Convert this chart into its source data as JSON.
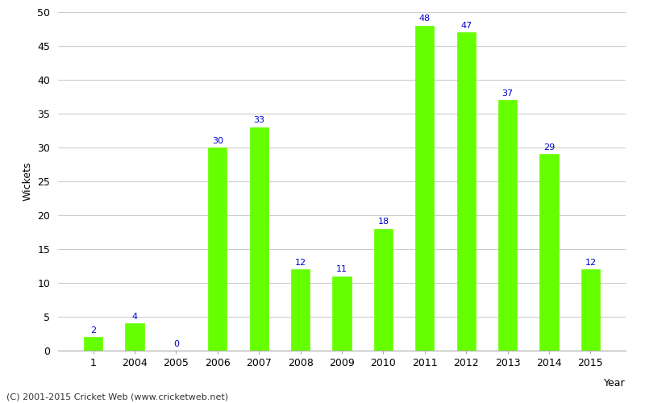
{
  "categories": [
    "1",
    "2004",
    "2005",
    "2006",
    "2007",
    "2008",
    "2009",
    "2010",
    "2011",
    "2012",
    "2013",
    "2014",
    "2015"
  ],
  "values": [
    2,
    4,
    0,
    30,
    33,
    12,
    11,
    18,
    48,
    47,
    37,
    29,
    12
  ],
  "bar_color": "#66ff00",
  "label_color": "#0000cc",
  "xlabel": "Year",
  "ylabel": "Wickets",
  "ylim": [
    0,
    50
  ],
  "yticks": [
    0,
    5,
    10,
    15,
    20,
    25,
    30,
    35,
    40,
    45,
    50
  ],
  "background_color": "#ffffff",
  "grid_color": "#cccccc",
  "annotation_fontsize": 8,
  "axis_label_fontsize": 9,
  "tick_fontsize": 9,
  "footer": "(C) 2001-2015 Cricket Web (www.cricketweb.net)",
  "footer_fontsize": 8,
  "bar_width": 0.45
}
